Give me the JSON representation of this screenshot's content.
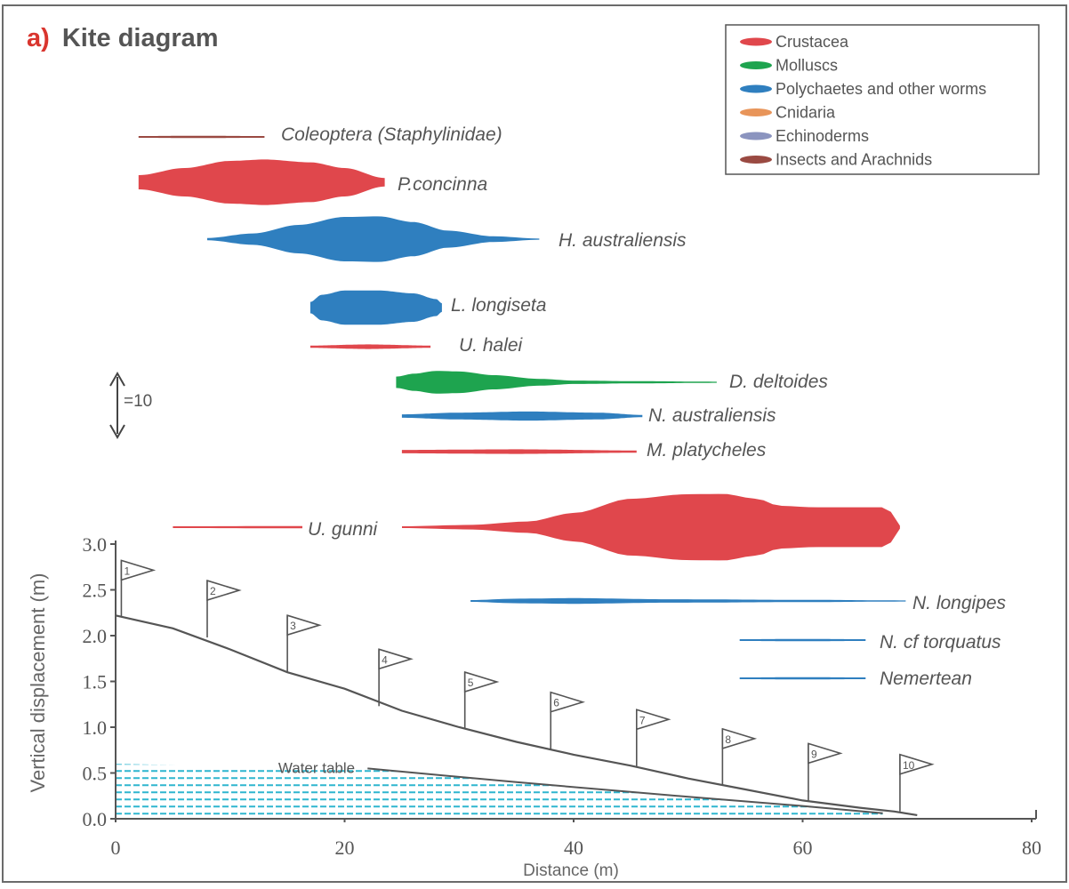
{
  "panel": {
    "letter": "a)",
    "title": "Kite diagram"
  },
  "colors": {
    "crustacea": "#e0474c",
    "molluscs": "#1ea44f",
    "polychaetes": "#2f7fbf",
    "cnidaria": "#e8955a",
    "echinoderms": "#8b94bf",
    "insects": "#9a4a42",
    "water": "#2fb6cf",
    "axis": "#555555",
    "titleAccent": "#d9352e"
  },
  "legend": {
    "position": "top-right",
    "items": [
      {
        "key": "crustacea",
        "label": "Crustacea"
      },
      {
        "key": "molluscs",
        "label": "Molluscs"
      },
      {
        "key": "polychaetes",
        "label": "Polychaetes and other worms"
      },
      {
        "key": "cnidaria",
        "label": "Cnidaria"
      },
      {
        "key": "echinoderms",
        "label": "Echinoderms"
      },
      {
        "key": "insects",
        "label": "Insects and Arachnids"
      }
    ]
  },
  "scale_bar": {
    "label": "=10",
    "value": 10
  },
  "chart_data": {
    "type": "area",
    "title": "Kite diagram",
    "xlabel": "Distance (m)",
    "ylabel": "Vertical displacement (m)",
    "xlim": [
      0,
      80
    ],
    "ylim": [
      0,
      3.0
    ],
    "xticks": [
      "0",
      "20",
      "40",
      "60",
      "80"
    ],
    "yticks": [
      "0.0",
      "0.5",
      "1.0",
      "1.5",
      "2.0",
      "2.5",
      "3.0"
    ],
    "kites": [
      {
        "name": "Coleoptera (Staphylinidae)",
        "group": "insects",
        "italic": true,
        "x_start": 2,
        "x_end": 13,
        "profile": [
          [
            2,
            0.3
          ],
          [
            7,
            0.4
          ],
          [
            13,
            0.3
          ]
        ]
      },
      {
        "name": "P.concinna",
        "group": "crustacea",
        "italic": true,
        "x_start": 2,
        "x_end": 23.5,
        "profile": [
          [
            2,
            2.5
          ],
          [
            6,
            5
          ],
          [
            10,
            7.5
          ],
          [
            13,
            8
          ],
          [
            17,
            7
          ],
          [
            20,
            5
          ],
          [
            23.5,
            1.5
          ]
        ]
      },
      {
        "name": "H. australiensis",
        "group": "polychaetes",
        "italic": true,
        "x_start": 8,
        "x_end": 37,
        "profile": [
          [
            8,
            0.4
          ],
          [
            12,
            2
          ],
          [
            16,
            5
          ],
          [
            20,
            7.8
          ],
          [
            23,
            8
          ],
          [
            26,
            6
          ],
          [
            29,
            3
          ],
          [
            33,
            1
          ],
          [
            37,
            0.2
          ]
        ]
      },
      {
        "name": "L. longiseta",
        "group": "polychaetes",
        "italic": true,
        "x_start": 17,
        "x_end": 28.5,
        "profile": [
          [
            17,
            2
          ],
          [
            18,
            4.5
          ],
          [
            20,
            6
          ],
          [
            23,
            6
          ],
          [
            26,
            5
          ],
          [
            28,
            3
          ],
          [
            28.5,
            1.5
          ]
        ]
      },
      {
        "name": "U. halei",
        "group": "crustacea",
        "italic": true,
        "x_start": 17,
        "x_end": 27.5,
        "profile": [
          [
            17,
            0.4
          ],
          [
            22,
            0.8
          ],
          [
            27.5,
            0.4
          ]
        ]
      },
      {
        "name": "D. deltoides",
        "group": "molluscs",
        "italic": true,
        "x_start": 24.5,
        "x_end": 52.5,
        "profile": [
          [
            24.5,
            2
          ],
          [
            26,
            3
          ],
          [
            28,
            4
          ],
          [
            30,
            3.8
          ],
          [
            33,
            2.5
          ],
          [
            37,
            1.2
          ],
          [
            40,
            0.6
          ],
          [
            45,
            0.4
          ],
          [
            52.5,
            0.2
          ]
        ]
      },
      {
        "name": "N. australiensis",
        "group": "polychaetes",
        "italic": true,
        "x_start": 25,
        "x_end": 46,
        "profile": [
          [
            25,
            0.6
          ],
          [
            30,
            1.2
          ],
          [
            36,
            1.6
          ],
          [
            42,
            1.2
          ],
          [
            46,
            0.4
          ]
        ]
      },
      {
        "name": "M. platycheles",
        "group": "crustacea",
        "italic": true,
        "x_start": 25,
        "x_end": 45.5,
        "profile": [
          [
            25,
            0.6
          ],
          [
            35,
            0.8
          ],
          [
            45.5,
            0.4
          ]
        ]
      },
      {
        "name": "U. gunni",
        "group": "crustacea",
        "italic": true,
        "x_start": 5,
        "x_end": 68.5,
        "profile": [
          [
            5,
            0.3
          ],
          [
            16,
            0.4
          ],
          [
            25,
            0.3
          ],
          [
            31,
            0.8
          ],
          [
            36,
            2
          ],
          [
            40,
            5
          ],
          [
            45,
            10
          ],
          [
            50,
            11.6
          ],
          [
            53,
            11.7
          ],
          [
            56,
            10
          ],
          [
            58,
            7.5
          ],
          [
            61,
            7
          ],
          [
            64,
            7
          ],
          [
            67,
            7
          ],
          [
            68,
            5
          ],
          [
            68.5,
            0.5
          ]
        ]
      },
      {
        "name": "N. longipes",
        "group": "polychaetes",
        "italic": true,
        "x_start": 31,
        "x_end": 69,
        "profile": [
          [
            31,
            0.3
          ],
          [
            35,
            0.8
          ],
          [
            40,
            1
          ],
          [
            48,
            0.6
          ],
          [
            60,
            0.4
          ],
          [
            69,
            0.2
          ]
        ]
      },
      {
        "name": "N. cf torquatus",
        "group": "polychaetes",
        "italic": true,
        "x_start": 54.5,
        "x_end": 65.5,
        "profile": [
          [
            54.5,
            0.3
          ],
          [
            60,
            0.4
          ],
          [
            65.5,
            0.3
          ]
        ]
      },
      {
        "name": "Nemertean",
        "group": "polychaetes",
        "italic": true,
        "x_start": 54.5,
        "x_end": 65.5,
        "profile": [
          [
            54.5,
            0.3
          ],
          [
            60,
            0.4
          ],
          [
            65.5,
            0.3
          ]
        ]
      }
    ],
    "beach_profile": [
      [
        0,
        2.22
      ],
      [
        5,
        2.08
      ],
      [
        10,
        1.85
      ],
      [
        15,
        1.6
      ],
      [
        20,
        1.42
      ],
      [
        25,
        1.18
      ],
      [
        30,
        1.0
      ],
      [
        35,
        0.84
      ],
      [
        40,
        0.7
      ],
      [
        45,
        0.58
      ],
      [
        50,
        0.44
      ],
      [
        55,
        0.32
      ],
      [
        60,
        0.2
      ],
      [
        65,
        0.12
      ],
      [
        68,
        0.08
      ],
      [
        70,
        0.04
      ]
    ],
    "water_table": {
      "label": "Water table",
      "level": [
        [
          0,
          0.6
        ],
        [
          22,
          0.55
        ],
        [
          35,
          0.4
        ],
        [
          50,
          0.24
        ],
        [
          60,
          0.14
        ],
        [
          67,
          0.06
        ]
      ]
    },
    "stations": [
      {
        "label": "1",
        "x": 0.5,
        "y": 2.2
      },
      {
        "label": "2",
        "x": 8,
        "y": 1.98
      },
      {
        "label": "3",
        "x": 15,
        "y": 1.6
      },
      {
        "label": "4",
        "x": 23,
        "y": 1.23
      },
      {
        "label": "5",
        "x": 30.5,
        "y": 0.98
      },
      {
        "label": "6",
        "x": 38,
        "y": 0.76
      },
      {
        "label": "7",
        "x": 45.5,
        "y": 0.57
      },
      {
        "label": "8",
        "x": 53,
        "y": 0.36
      },
      {
        "label": "9",
        "x": 60.5,
        "y": 0.2
      },
      {
        "label": "10",
        "x": 68.5,
        "y": 0.08
      }
    ]
  }
}
